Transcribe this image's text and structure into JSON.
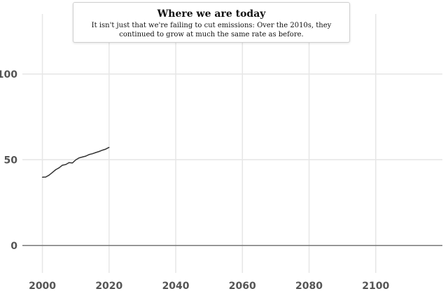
{
  "chart_data": {
    "type": "line",
    "annotation": {
      "title": "Where we are today",
      "text": "It isn't just that we're failing to cut emissions: Over the 2010s, they continued to grow at much the same rate as before."
    },
    "xlim": [
      1994,
      2120
    ],
    "ylim": [
      -16,
      135
    ],
    "x_ticks": [
      2000,
      2020,
      2040,
      2060,
      2080,
      2100
    ],
    "y_ticks": [
      0,
      50,
      100
    ],
    "grid": true,
    "series": [
      {
        "x": [
          2000,
          2001,
          2002,
          2003,
          2004,
          2005,
          2006,
          2007,
          2008,
          2009,
          2010,
          2011,
          2012,
          2013,
          2014,
          2015,
          2016,
          2017,
          2018,
          2019,
          2020
        ],
        "values": [
          39.8,
          39.9,
          41.0,
          42.6,
          44.2,
          45.3,
          46.8,
          47.2,
          48.3,
          48.1,
          49.9,
          51.1,
          51.6,
          52.1,
          53.0,
          53.5,
          54.2,
          54.8,
          55.6,
          56.2,
          57.2
        ]
      }
    ],
    "colors": {
      "line": "#333333",
      "grid": "#e6e6e6",
      "baseline": "#777777"
    }
  }
}
